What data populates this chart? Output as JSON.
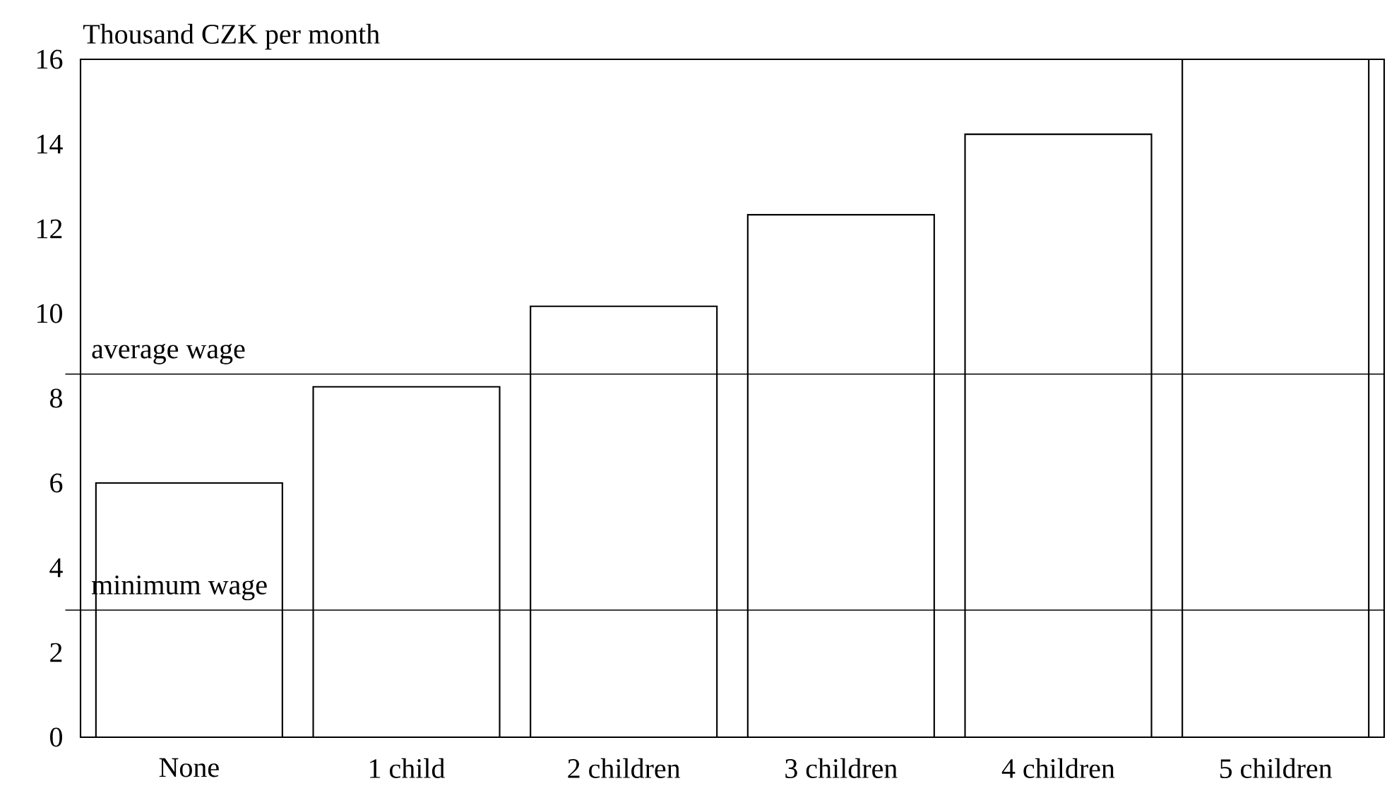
{
  "chart_data": {
    "type": "bar",
    "ylabel": "Thousand CZK per month",
    "categories": [
      "None",
      "1 child",
      "2 children",
      "3 children",
      "4 children",
      "5 children"
    ],
    "values": [
      6.0,
      8.27,
      10.17,
      12.33,
      14.23,
      16.0
    ],
    "color": "#ffffff",
    "ylim": [
      0,
      16
    ],
    "yticks": [
      0,
      2,
      4,
      6,
      8,
      10,
      12,
      14,
      16
    ],
    "ref_lines": [
      {
        "axis": "y",
        "value": 8.57,
        "label": "average wage"
      },
      {
        "axis": "y",
        "value": 3.0,
        "label": "minimum wage"
      }
    ],
    "grid": false
  }
}
